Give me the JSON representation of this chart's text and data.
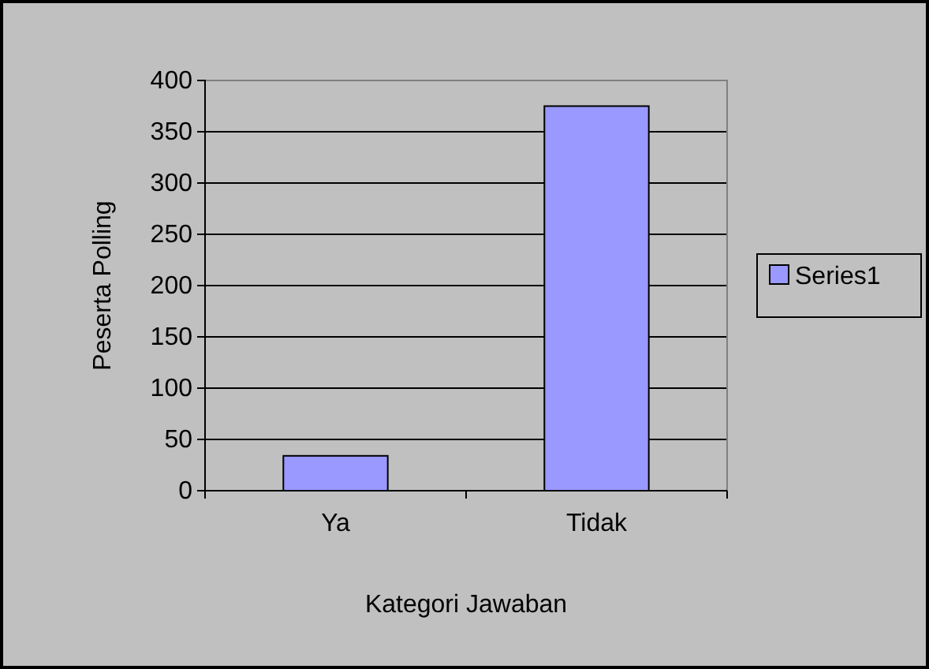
{
  "chart_data": {
    "type": "bar",
    "xlabel": "Kategori Jawaban",
    "ylabel": "Peserta Polling",
    "categories": [
      "Ya",
      "Tidak"
    ],
    "series": [
      {
        "name": "Series1",
        "color": "#9999ff",
        "values": [
          34,
          375
        ]
      }
    ],
    "ylim": [
      0,
      400
    ],
    "yticks": [
      0,
      50,
      100,
      150,
      200,
      250,
      300,
      350,
      400
    ],
    "grid": "y",
    "legend": "right"
  }
}
